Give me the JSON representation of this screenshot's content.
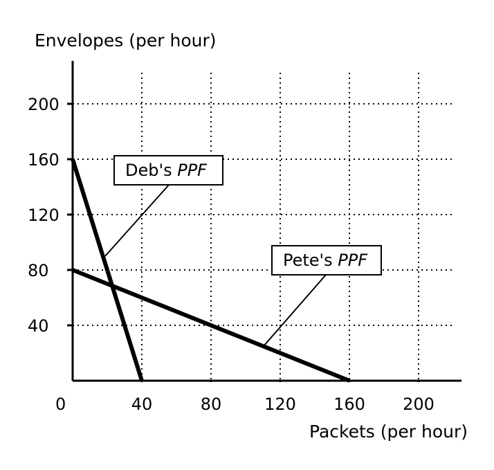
{
  "chart_data": {
    "type": "line",
    "xlabel": "Packets (per hour)",
    "ylabel": "Envelopes (per hour)",
    "xlim": [
      0,
      225
    ],
    "ylim": [
      0,
      228
    ],
    "x_ticks": [
      40,
      80,
      120,
      160,
      200
    ],
    "y_ticks": [
      40,
      80,
      120,
      160,
      200
    ],
    "origin_label": "0",
    "grid": true,
    "series": [
      {
        "name": "Deb's PPF",
        "label_main": "Deb's ",
        "label_italic": "PPF",
        "x": [
          0,
          40
        ],
        "y": [
          160,
          0
        ]
      },
      {
        "name": "Pete's PPF",
        "label_main": "Pete's ",
        "label_italic": "PPF",
        "x": [
          0,
          160
        ],
        "y": [
          80,
          0
        ]
      }
    ]
  }
}
